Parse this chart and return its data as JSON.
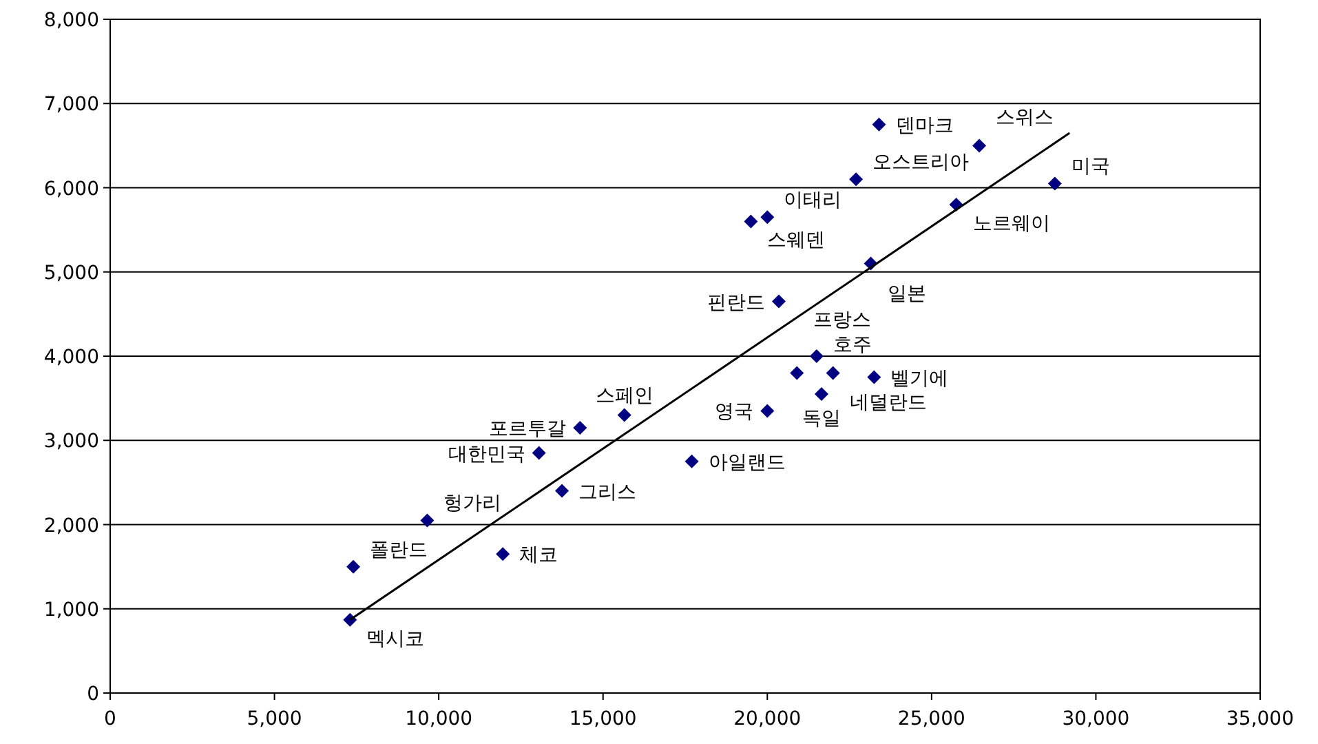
{
  "chart_data": {
    "type": "scatter",
    "marker": "diamond",
    "grid": "y",
    "xlim": [
      0,
      35000
    ],
    "xticks": [
      {
        "value": 0,
        "label": "0"
      },
      {
        "value": 5000,
        "label": "5,000"
      },
      {
        "value": 10000,
        "label": "10,000"
      },
      {
        "value": 15000,
        "label": "15,000"
      },
      {
        "value": 20000,
        "label": "20,000"
      },
      {
        "value": 25000,
        "label": "25,000"
      },
      {
        "value": 30000,
        "label": "30,000"
      },
      {
        "value": 35000,
        "label": "35,000"
      }
    ],
    "ylim": [
      0,
      8000
    ],
    "yticks": [
      {
        "value": 0,
        "label": "0"
      },
      {
        "value": 1000,
        "label": "1,000"
      },
      {
        "value": 2000,
        "label": "2,000"
      },
      {
        "value": 3000,
        "label": "3,000"
      },
      {
        "value": 4000,
        "label": "4,000"
      },
      {
        "value": 5000,
        "label": "5,000"
      },
      {
        "value": 6000,
        "label": "6,000"
      },
      {
        "value": 7000,
        "label": "7,000"
      },
      {
        "value": 8000,
        "label": "8,000"
      }
    ],
    "series": [
      {
        "type": "scatter",
        "color": "#000080",
        "x": [
          7300,
          7400,
          9650,
          11950,
          13750,
          13050,
          14300,
          15650,
          17700,
          20000,
          20900,
          21500,
          22000,
          21650,
          23250,
          20350,
          23150,
          19500,
          20000,
          22700,
          25750,
          23400,
          26450,
          28750
        ],
        "values": [
          870,
          1500,
          2050,
          1650,
          2400,
          2850,
          3150,
          3300,
          2750,
          3350,
          3800,
          4000,
          3800,
          3550,
          3750,
          4650,
          5100,
          5600,
          5650,
          6100,
          5800,
          6750,
          6500,
          6050
        ]
      },
      {
        "type": "line",
        "color": "#000000",
        "marker": "none",
        "x": [
          7300,
          29200
        ],
        "values": [
          870,
          6650
        ]
      }
    ],
    "annotations": [
      {
        "text": "멕시코",
        "x": 7300,
        "y": 870
      },
      {
        "text": "폴란드",
        "x": 7400,
        "y": 1500
      },
      {
        "text": "헝가리",
        "x": 9650,
        "y": 2050
      },
      {
        "text": "체코",
        "x": 11950,
        "y": 1650
      },
      {
        "text": "그리스",
        "x": 13750,
        "y": 2400
      },
      {
        "text": "대한민국",
        "x": 13050,
        "y": 2850
      },
      {
        "text": "포르투갈",
        "x": 14300,
        "y": 3150
      },
      {
        "text": "스페인",
        "x": 15650,
        "y": 3300
      },
      {
        "text": "아일랜드",
        "x": 17700,
        "y": 2750
      },
      {
        "text": "영국",
        "x": 20000,
        "y": 3350
      },
      {
        "text": "프랑스",
        "x": 20900,
        "y": 3800
      },
      {
        "text": "호주",
        "x": 21500,
        "y": 4000
      },
      {
        "text": "네덜란드",
        "x": 22000,
        "y": 3800
      },
      {
        "text": "독일",
        "x": 21650,
        "y": 3550
      },
      {
        "text": "벨기에",
        "x": 23250,
        "y": 3750
      },
      {
        "text": "핀란드",
        "x": 20350,
        "y": 4650
      },
      {
        "text": "일본",
        "x": 23150,
        "y": 5100
      },
      {
        "text": "스웨덴",
        "x": 19500,
        "y": 5600
      },
      {
        "text": "이태리",
        "x": 20000,
        "y": 5650
      },
      {
        "text": "오스트리아",
        "x": 22700,
        "y": 6100
      },
      {
        "text": "노르웨이",
        "x": 25750,
        "y": 5800
      },
      {
        "text": "덴마크",
        "x": 23400,
        "y": 6750
      },
      {
        "text": "스위스",
        "x": 26450,
        "y": 6500
      },
      {
        "text": "미국",
        "x": 28750,
        "y": 6050
      }
    ]
  }
}
